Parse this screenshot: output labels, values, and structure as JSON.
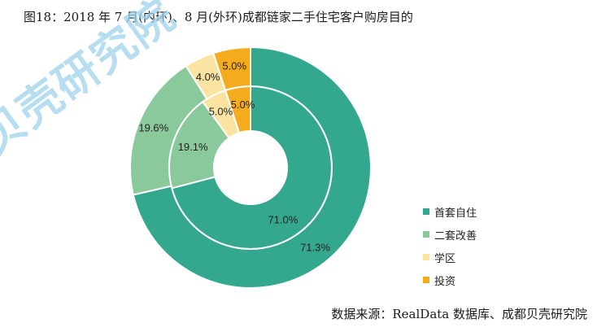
{
  "figure": {
    "title": "图18：2018 年 7 月(内环)、8 月(外环)成都链家二手住宅客户购房目的",
    "source": "数据来源：RealData 数据库、成都贝壳研究院",
    "watermark": "贝壳研究院"
  },
  "chart_data": {
    "type": "pie",
    "subtype": "donut",
    "categories": [
      "首套自住",
      "二套改善",
      "学区",
      "投资"
    ],
    "colors": [
      "#34a88f",
      "#8ac99b",
      "#fbe3a2",
      "#f5ab1e"
    ],
    "series": [
      {
        "ring": "inner",
        "values": [
          71.0,
          19.1,
          5.0,
          5.0
        ],
        "labels": [
          "71.0%",
          "19.1%",
          "5.0%",
          "5.0%"
        ]
      },
      {
        "ring": "outer",
        "values": [
          71.3,
          19.6,
          4.0,
          5.0
        ],
        "labels": [
          "71.3%",
          "19.6%",
          "4.0%",
          "5.0%"
        ]
      }
    ],
    "legend_position": "right"
  }
}
